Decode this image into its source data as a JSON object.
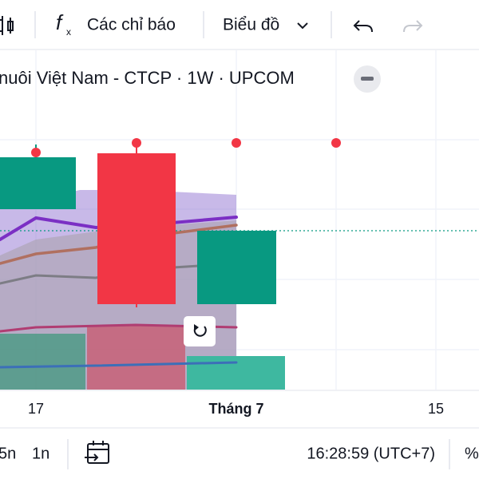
{
  "toolbar": {
    "indicators": "Các chỉ báo",
    "chart": "Biểu đồ"
  },
  "legend": {
    "title": "nuôi Việt Nam - CTCP · 1W · UPCOM"
  },
  "x_axis": {
    "labels": [
      "17",
      "Tháng 7",
      "15"
    ]
  },
  "bottom_bar": {
    "ranges": [
      "5n",
      "1n"
    ],
    "time": "16:28:59 (UTC+7)",
    "percent": "%"
  }
}
